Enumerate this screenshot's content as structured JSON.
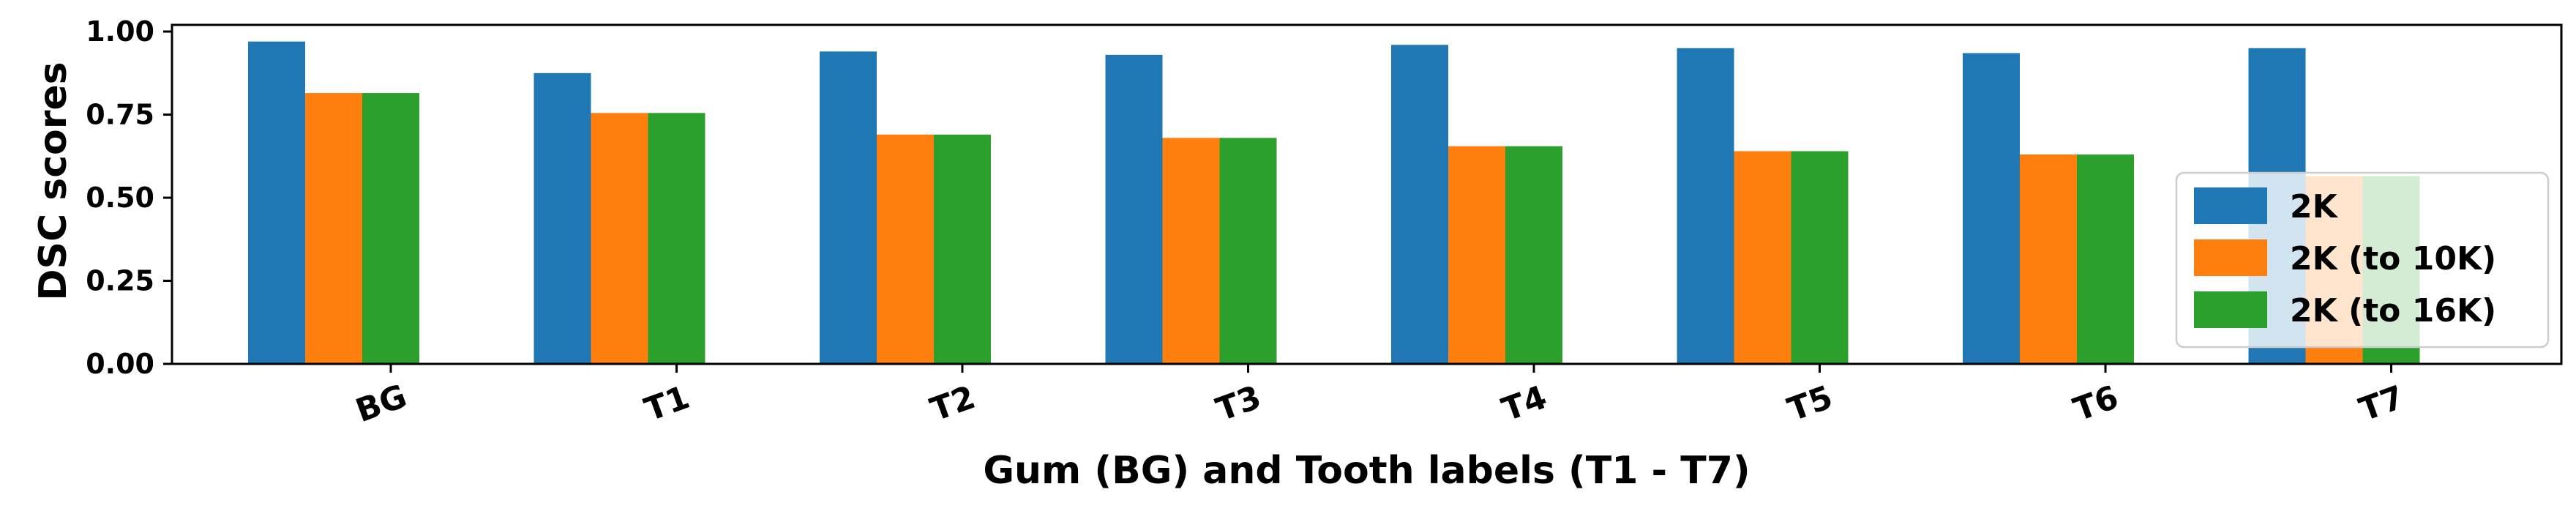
{
  "chart_data": {
    "type": "bar",
    "categories": [
      "BG",
      "T1",
      "T2",
      "T3",
      "T4",
      "T5",
      "T6",
      "T7"
    ],
    "series": [
      {
        "name": "2K",
        "color": "#1f77b4",
        "values": [
          0.97,
          0.875,
          0.94,
          0.93,
          0.96,
          0.95,
          0.935,
          0.95
        ]
      },
      {
        "name": "2K (to 10K)",
        "color": "#ff7f0e",
        "values": [
          0.815,
          0.755,
          0.69,
          0.68,
          0.655,
          0.64,
          0.63,
          0.565
        ]
      },
      {
        "name": "2K (to 16K)",
        "color": "#2ca02c",
        "values": [
          0.815,
          0.755,
          0.69,
          0.68,
          0.655,
          0.64,
          0.63,
          0.565
        ]
      }
    ],
    "xlabel": "Gum (BG) and Tooth labels (T1 - T7)",
    "ylabel": "DSC scores",
    "ylim": [
      0,
      1.02
    ],
    "yticks": [
      "0.00",
      "0.25",
      "0.50",
      "0.75",
      "1.00"
    ],
    "legend_position": "lower-right",
    "grid": false
  }
}
